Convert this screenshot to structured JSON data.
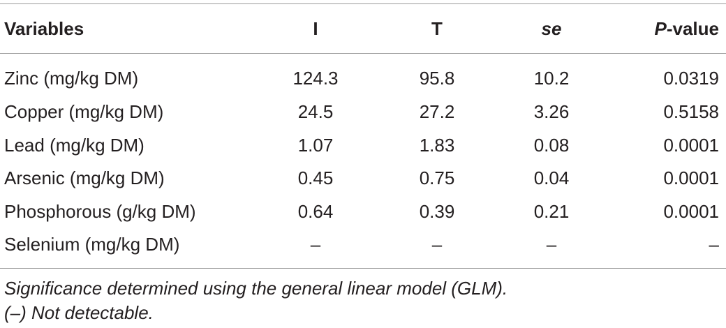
{
  "table": {
    "headers": {
      "col0": "Variables",
      "col1": "I",
      "col2": "T",
      "col3": "se",
      "col4_italic": "P",
      "col4_rest": "-value"
    },
    "rows": [
      {
        "variable": "Zinc (mg/kg DM)",
        "I": "124.3",
        "T": "95.8",
        "se": "10.2",
        "p": "0.0319"
      },
      {
        "variable": "Copper (mg/kg DM)",
        "I": "24.5",
        "T": "27.2",
        "se": "3.26",
        "p": "0.5158"
      },
      {
        "variable": "Lead (mg/kg DM)",
        "I": "1.07",
        "T": "1.83",
        "se": "0.08",
        "p": "0.0001"
      },
      {
        "variable": "Arsenic (mg/kg DM)",
        "I": "0.45",
        "T": "0.75",
        "se": "0.04",
        "p": "0.0001"
      },
      {
        "variable": "Phosphorous (g/kg DM)",
        "I": "0.64",
        "T": "0.39",
        "se": "0.21",
        "p": "0.0001"
      },
      {
        "variable": "Selenium (mg/kg DM)",
        "I": "–",
        "T": "–",
        "se": "–",
        "p": "–"
      }
    ]
  },
  "footnotes": [
    "Significance determined using the general linear model (GLM).",
    "(–) Not detectable."
  ]
}
